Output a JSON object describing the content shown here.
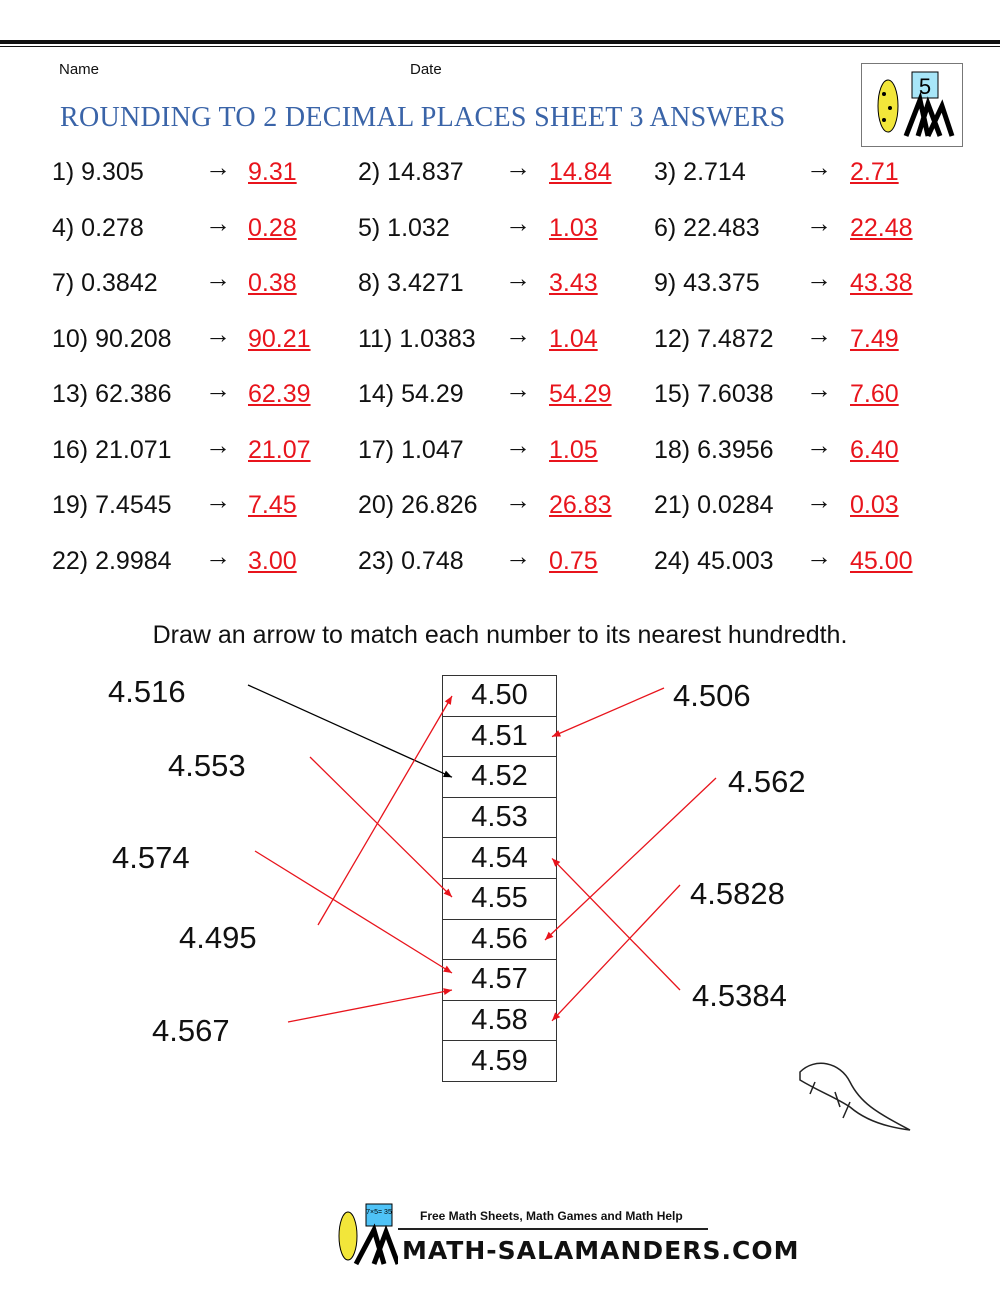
{
  "header": {
    "name_label": "Name",
    "date_label": "Date",
    "title": "ROUNDING TO 2 DECIMAL PLACES SHEET 3 ANSWERS",
    "logo_grade": "5"
  },
  "arrow_symbol": "→",
  "questions": [
    {
      "q": "1) 9.305",
      "a": "9.31"
    },
    {
      "q": "2) 14.837",
      "a": "14.84"
    },
    {
      "q": "3) 2.714",
      "a": "2.71"
    },
    {
      "q": "4) 0.278",
      "a": "0.28"
    },
    {
      "q": "5) 1.032",
      "a": "1.03"
    },
    {
      "q": "6) 22.483",
      "a": "22.48"
    },
    {
      "q": "7) 0.3842",
      "a": "0.38"
    },
    {
      "q": "8) 3.4271",
      "a": "3.43"
    },
    {
      "q": "9) 43.375",
      "a": "43.38"
    },
    {
      "q": "10) 90.208",
      "a": "90.21"
    },
    {
      "q": "11) 1.0383",
      "a": "1.04"
    },
    {
      "q": "12) 7.4872",
      "a": "7.49"
    },
    {
      "q": "13) 62.386",
      "a": "62.39"
    },
    {
      "q": "14) 54.29",
      "a": "54.29"
    },
    {
      "q": "15) 7.6038",
      "a": "7.60"
    },
    {
      "q": "16) 21.071",
      "a": "21.07"
    },
    {
      "q": "17) 1.047",
      "a": "1.05"
    },
    {
      "q": "18) 6.3956",
      "a": "6.40"
    },
    {
      "q": "19) 7.4545",
      "a": "7.45"
    },
    {
      "q": "20) 26.826",
      "a": "26.83"
    },
    {
      "q": "21) 0.0284",
      "a": "0.03"
    },
    {
      "q": "22) 2.9984",
      "a": "3.00"
    },
    {
      "q": "23) 0.748",
      "a": "0.75"
    },
    {
      "q": "24) 45.003",
      "a": "45.00"
    }
  ],
  "matching": {
    "instruction": "Draw an arrow to match each number to its nearest hundredth.",
    "targets": [
      "4.50",
      "4.51",
      "4.52",
      "4.53",
      "4.54",
      "4.55",
      "4.56",
      "4.57",
      "4.58",
      "4.59"
    ],
    "left_numbers": [
      "4.516",
      "4.553",
      "4.574",
      "4.495",
      "4.567"
    ],
    "right_numbers": [
      "4.506",
      "4.562",
      "4.5828",
      "4.5384"
    ],
    "answers": [
      {
        "from": "4.516",
        "to": "4.52",
        "color": "#000000"
      },
      {
        "from": "4.553",
        "to": "4.55",
        "color": "#e8141c"
      },
      {
        "from": "4.574",
        "to": "4.57",
        "color": "#e8141c"
      },
      {
        "from": "4.495",
        "to": "4.50",
        "color": "#e8141c"
      },
      {
        "from": "4.567",
        "to": "4.57",
        "color": "#e8141c"
      },
      {
        "from": "4.506",
        "to": "4.51",
        "color": "#e8141c"
      },
      {
        "from": "4.562",
        "to": "4.56",
        "color": "#e8141c"
      },
      {
        "from": "4.5828",
        "to": "4.58",
        "color": "#e8141c"
      },
      {
        "from": "4.5384",
        "to": "4.54",
        "color": "#e8141c"
      }
    ]
  },
  "footer": {
    "tagline": "Free Math Sheets, Math Games and Math Help",
    "site": "MATH-SALAMANDERS.COM",
    "logo_sum": "7×5= 35"
  },
  "colors": {
    "title": "#3a64a8",
    "answer": "#e8141c"
  }
}
